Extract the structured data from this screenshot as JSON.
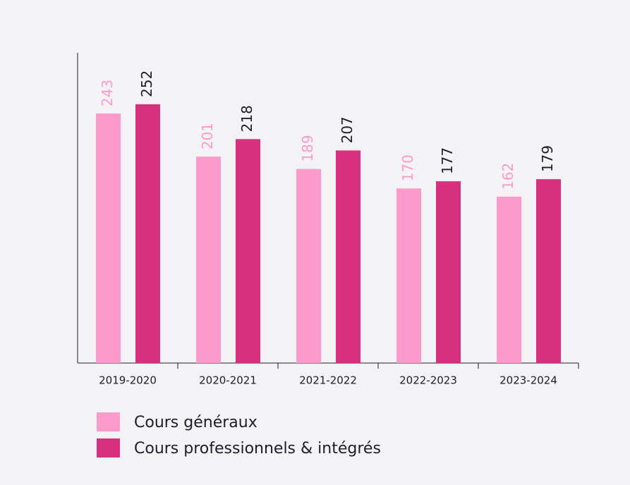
{
  "chart_data": {
    "type": "bar",
    "categories": [
      "2019-2020",
      "2020-2021",
      "2021-2022",
      "2022-2023",
      "2023-2024"
    ],
    "series": [
      {
        "name": "Cours généraux",
        "color": "#fc9bcb",
        "values": [
          243,
          201,
          189,
          170,
          162
        ]
      },
      {
        "name": "Cours professionnels & intégrés",
        "color": "#d6307f",
        "values": [
          252,
          218,
          207,
          177,
          179
        ]
      }
    ],
    "ylim": [
      0,
      302
    ]
  }
}
